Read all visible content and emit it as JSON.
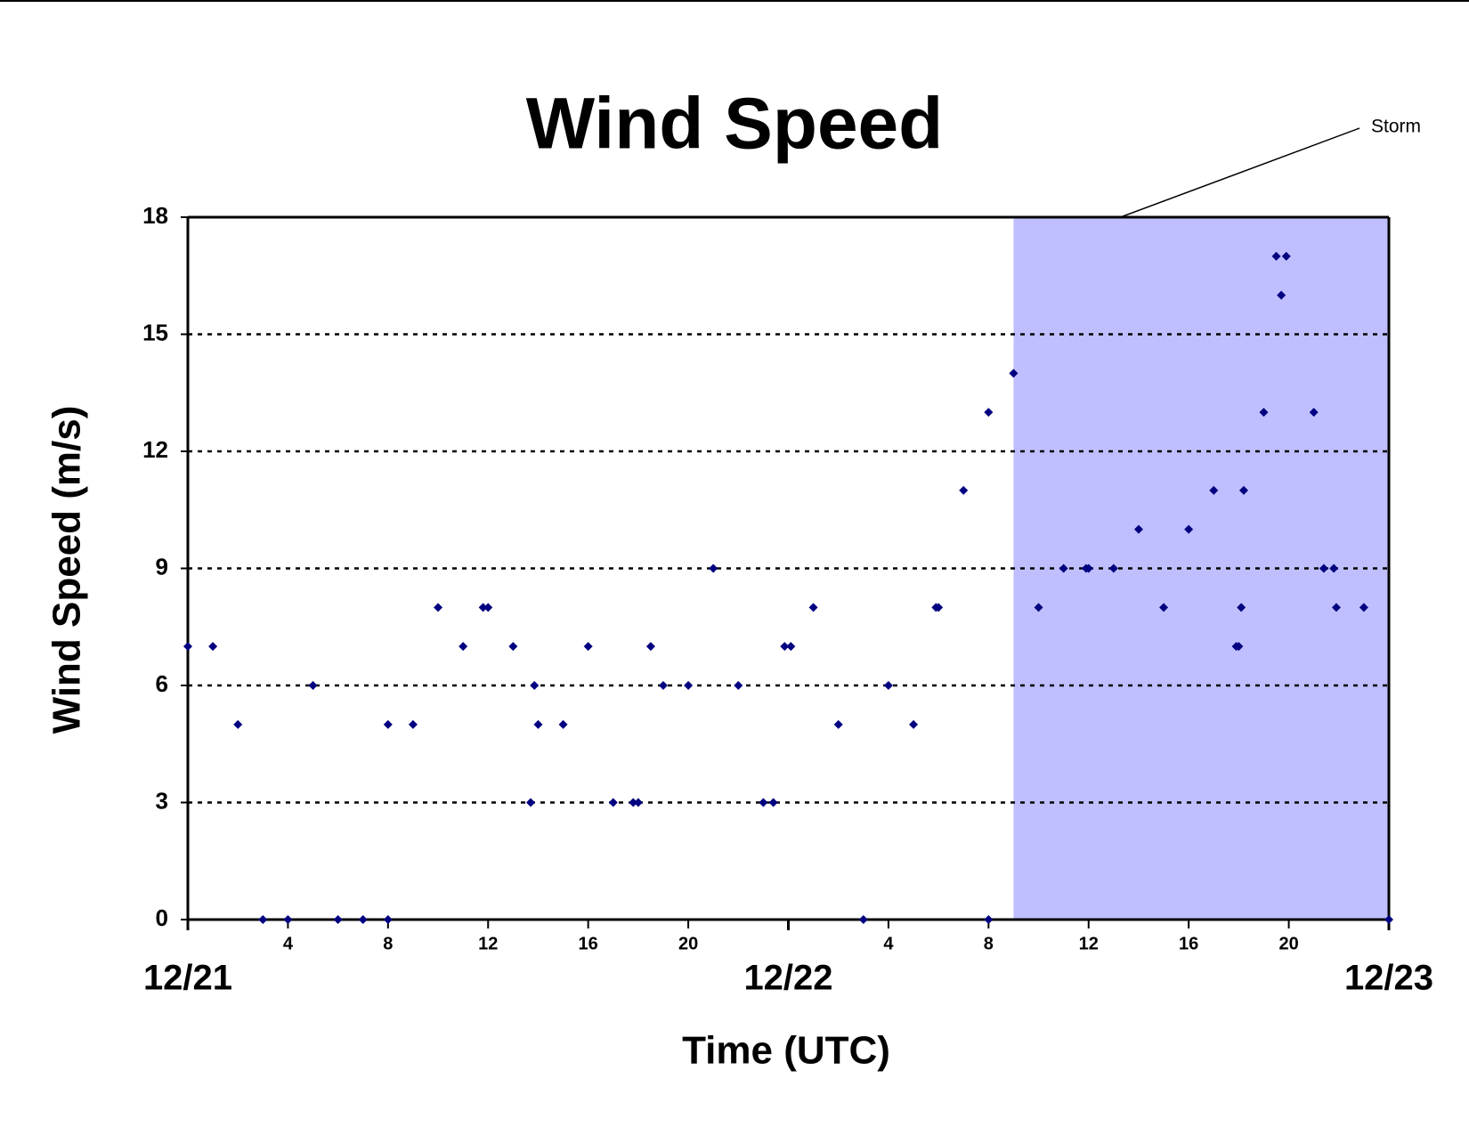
{
  "chart_data": {
    "type": "scatter",
    "title": "Wind Speed",
    "xlabel": "Time (UTC)",
    "ylabel": "Wind Speed (m/s)",
    "x": [
      0,
      1,
      2,
      3,
      4,
      5,
      6,
      7,
      8,
      8,
      9,
      10,
      11,
      11.8,
      12,
      13,
      13.7,
      13.85,
      14,
      15,
      16,
      17,
      17.8,
      18,
      18.5,
      19,
      20,
      21,
      22,
      23,
      23.4,
      23.85,
      24.1,
      25,
      26,
      27,
      28,
      29,
      29.9,
      30,
      31,
      32,
      32,
      33,
      34,
      35,
      35.9,
      36,
      37,
      38,
      39,
      40,
      41,
      41.9,
      42,
      42.1,
      42.2,
      43,
      43.5,
      43.7,
      43.9,
      45,
      45.4,
      45.8,
      45.9,
      47,
      48
    ],
    "values": [
      7,
      7,
      5,
      0,
      0,
      6,
      0,
      0,
      5,
      0,
      5,
      8,
      7,
      8,
      8,
      7,
      3,
      6,
      5,
      5,
      7,
      3,
      3,
      3,
      7,
      6,
      6,
      9,
      6,
      3,
      3,
      7,
      7,
      8,
      5,
      0,
      6,
      5,
      8,
      8,
      11,
      13,
      0,
      14,
      8,
      9,
      9,
      9,
      9,
      10,
      8,
      10,
      11,
      7,
      7,
      8,
      11,
      13,
      17,
      16,
      17,
      13,
      9,
      9,
      8,
      8,
      0
    ],
    "color": "#000080",
    "xlim": [
      0,
      48
    ],
    "ylim": [
      0,
      18
    ],
    "yticks": [
      0,
      3,
      6,
      9,
      12,
      15,
      18
    ],
    "xticks": [
      4,
      8,
      12,
      16,
      20,
      {
        "value": 28,
        "label": "4"
      },
      {
        "value": 32,
        "label": "8"
      },
      {
        "value": 36,
        "label": "12"
      },
      {
        "value": 40,
        "label": "16"
      },
      {
        "value": 44,
        "label": "20"
      }
    ],
    "xticks_major": [
      {
        "value": 0,
        "label": "12/21"
      },
      {
        "value": 24,
        "label": "12/22"
      },
      {
        "value": 48,
        "label": "12/23"
      }
    ],
    "grid": true,
    "shaded_region": {
      "label": "Storm",
      "x": [
        33,
        48
      ],
      "color": "#bfbfff"
    }
  }
}
